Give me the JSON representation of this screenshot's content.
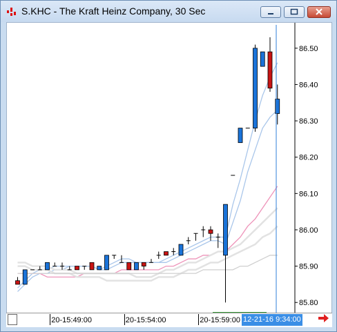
{
  "window": {
    "title": "S.KHC - The Kraft Heinz Company, 30 Sec",
    "buttons": [
      "minimize",
      "maximize",
      "close"
    ]
  },
  "chart_data": {
    "type": "candlestick",
    "title": "S.KHC - The Kraft Heinz Company, 30 Sec",
    "ylim": [
      85.77,
      86.57
    ],
    "y_ticks": [
      "86.50",
      "86.40",
      "86.30",
      "86.20",
      "86.10",
      "86.00",
      "85.90",
      "85.80"
    ],
    "y_tick_values": [
      86.5,
      86.4,
      86.3,
      86.2,
      86.1,
      86.0,
      85.9,
      85.8
    ],
    "x_tick_labels": [
      "20-15:49:00",
      "20-15:54:00",
      "20-15:59:00"
    ],
    "x_tick_index": [
      5,
      15,
      25
    ],
    "current_time_label": "12-21-16  9:34:00",
    "bar_count": 36,
    "candles": [
      {
        "i": 0,
        "o": 85.86,
        "h": 85.87,
        "l": 85.85,
        "c": 85.85,
        "color": "red"
      },
      {
        "i": 1,
        "o": 85.85,
        "h": 85.89,
        "l": 85.85,
        "c": 85.89,
        "color": "blue"
      },
      {
        "i": 2,
        "o": 85.89,
        "h": 85.89,
        "l": 85.89,
        "c": 85.89,
        "color": "doji"
      },
      {
        "i": 3,
        "o": 85.89,
        "h": 85.9,
        "l": 85.89,
        "c": 85.89,
        "color": "doji"
      },
      {
        "i": 4,
        "o": 85.89,
        "h": 85.91,
        "l": 85.89,
        "c": 85.91,
        "color": "blue"
      },
      {
        "i": 5,
        "o": 85.9,
        "h": 85.91,
        "l": 85.9,
        "c": 85.9,
        "color": "doji"
      },
      {
        "i": 6,
        "o": 85.9,
        "h": 85.91,
        "l": 85.89,
        "c": 85.9,
        "color": "doji"
      },
      {
        "i": 7,
        "o": 85.89,
        "h": 85.9,
        "l": 85.89,
        "c": 85.89,
        "color": "doji"
      },
      {
        "i": 8,
        "o": 85.9,
        "h": 85.9,
        "l": 85.89,
        "c": 85.89,
        "color": "red"
      },
      {
        "i": 9,
        "o": 85.89,
        "h": 85.9,
        "l": 85.89,
        "c": 85.9,
        "color": "doji"
      },
      {
        "i": 10,
        "o": 85.91,
        "h": 85.91,
        "l": 85.89,
        "c": 85.89,
        "color": "red"
      },
      {
        "i": 11,
        "o": 85.89,
        "h": 85.9,
        "l": 85.89,
        "c": 85.9,
        "color": "blue"
      },
      {
        "i": 12,
        "o": 85.89,
        "h": 85.93,
        "l": 85.89,
        "c": 85.93,
        "color": "blue"
      },
      {
        "i": 13,
        "o": 85.93,
        "h": 85.93,
        "l": 85.92,
        "c": 85.93,
        "color": "doji"
      },
      {
        "i": 14,
        "o": 85.93,
        "h": 85.93,
        "l": 85.91,
        "c": 85.91,
        "color": "doji"
      },
      {
        "i": 15,
        "o": 85.91,
        "h": 85.91,
        "l": 85.89,
        "c": 85.89,
        "color": "red"
      },
      {
        "i": 16,
        "o": 85.89,
        "h": 85.91,
        "l": 85.89,
        "c": 85.91,
        "color": "blue"
      },
      {
        "i": 17,
        "o": 85.91,
        "h": 85.91,
        "l": 85.89,
        "c": 85.9,
        "color": "red"
      },
      {
        "i": 18,
        "o": 85.92,
        "h": 85.92,
        "l": 85.91,
        "c": 85.91,
        "color": "doji"
      },
      {
        "i": 19,
        "o": 85.93,
        "h": 85.94,
        "l": 85.92,
        "c": 85.93,
        "color": "doji"
      },
      {
        "i": 20,
        "o": 85.94,
        "h": 85.94,
        "l": 85.93,
        "c": 85.93,
        "color": "red"
      },
      {
        "i": 21,
        "o": 85.94,
        "h": 85.95,
        "l": 85.93,
        "c": 85.94,
        "color": "doji"
      },
      {
        "i": 22,
        "o": 85.93,
        "h": 85.96,
        "l": 85.93,
        "c": 85.96,
        "color": "blue"
      },
      {
        "i": 23,
        "o": 85.97,
        "h": 85.98,
        "l": 85.96,
        "c": 85.97,
        "color": "doji"
      },
      {
        "i": 24,
        "o": 85.97,
        "h": 85.99,
        "l": 85.97,
        "c": 85.99,
        "color": "doji"
      },
      {
        "i": 25,
        "o": 85.99,
        "h": 86.01,
        "l": 85.98,
        "c": 86.0,
        "color": "doji"
      },
      {
        "i": 26,
        "o": 86.0,
        "h": 86.01,
        "l": 85.97,
        "c": 85.99,
        "color": "red"
      },
      {
        "i": 27,
        "o": 85.98,
        "h": 85.99,
        "l": 85.95,
        "c": 85.98,
        "color": "doji"
      },
      {
        "i": 28,
        "o": 85.93,
        "h": 86.07,
        "l": 85.8,
        "c": 86.07,
        "color": "blue"
      },
      {
        "i": 29,
        "o": 86.15,
        "h": 86.15,
        "l": 86.15,
        "c": 86.15,
        "color": "doji"
      },
      {
        "i": 30,
        "o": 86.24,
        "h": 86.28,
        "l": 86.24,
        "c": 86.28,
        "color": "blue"
      },
      {
        "i": 31,
        "o": 86.28,
        "h": 86.28,
        "l": 86.28,
        "c": 86.28,
        "color": "doji"
      },
      {
        "i": 32,
        "o": 86.28,
        "h": 86.51,
        "l": 86.27,
        "c": 86.5,
        "color": "blue"
      },
      {
        "i": 33,
        "o": 86.49,
        "h": 86.49,
        "l": 86.45,
        "c": 86.45,
        "color": "blue"
      },
      {
        "i": 34,
        "o": 86.49,
        "h": 86.53,
        "l": 86.38,
        "c": 86.39,
        "color": "red"
      },
      {
        "i": 35,
        "o": 86.32,
        "h": 86.4,
        "l": 86.29,
        "c": 86.36,
        "color": "blue"
      }
    ],
    "series": [
      {
        "color": "#a9c6ea",
        "values": [
          85.84,
          85.86,
          85.88,
          85.89,
          85.89,
          85.9,
          85.9,
          85.9,
          85.9,
          85.9,
          85.9,
          85.89,
          85.9,
          85.91,
          85.92,
          85.92,
          85.91,
          85.91,
          85.91,
          85.91,
          85.92,
          85.93,
          85.94,
          85.95,
          85.96,
          85.97,
          85.98,
          85.98,
          85.98,
          86.07,
          86.14,
          86.22,
          86.3,
          86.37,
          86.42,
          86.46
        ]
      },
      {
        "color": "#a9c6ea",
        "values": [
          85.83,
          85.85,
          85.87,
          85.88,
          85.88,
          85.89,
          85.89,
          85.9,
          85.9,
          85.9,
          85.9,
          85.89,
          85.89,
          85.9,
          85.91,
          85.91,
          85.91,
          85.91,
          85.91,
          85.91,
          85.91,
          85.92,
          85.93,
          85.94,
          85.95,
          85.96,
          85.97,
          85.97,
          85.96,
          86.02,
          86.08,
          86.16,
          86.22,
          86.28,
          86.31,
          86.33
        ]
      },
      {
        "color": "#ee93b9",
        "values": [
          85.88,
          85.88,
          85.88,
          85.88,
          85.87,
          85.87,
          85.87,
          85.87,
          85.87,
          85.88,
          85.88,
          85.88,
          85.88,
          85.88,
          85.89,
          85.89,
          85.89,
          85.89,
          85.89,
          85.89,
          85.9,
          85.9,
          85.91,
          85.92,
          85.92,
          85.93,
          85.93,
          85.94,
          85.94,
          85.96,
          85.98,
          86.01,
          86.03,
          86.06,
          86.09,
          86.12
        ]
      },
      {
        "color": "#e2e2e2",
        "values": [
          85.91,
          85.91,
          85.9,
          85.9,
          85.9,
          85.89,
          85.89,
          85.89,
          85.88,
          85.88,
          85.88,
          85.88,
          85.88,
          85.88,
          85.88,
          85.88,
          85.87,
          85.87,
          85.87,
          85.88,
          85.89,
          85.89,
          85.9,
          85.91,
          85.91,
          85.92,
          85.93,
          85.94,
          85.94,
          85.95,
          85.96,
          85.98,
          86.0,
          86.02,
          86.04,
          86.06
        ]
      },
      {
        "color": "#e2e2e2",
        "values": [
          85.9,
          85.9,
          85.89,
          85.89,
          85.89,
          85.88,
          85.88,
          85.88,
          85.87,
          85.87,
          85.87,
          85.87,
          85.86,
          85.86,
          85.86,
          85.86,
          85.86,
          85.86,
          85.86,
          85.87,
          85.87,
          85.87,
          85.88,
          85.89,
          85.89,
          85.9,
          85.91,
          85.91,
          85.92,
          85.93,
          85.94,
          85.95,
          85.96,
          85.98,
          85.99,
          86.01
        ]
      },
      {
        "color": "#cfcfcf",
        "values": [
          85.88,
          85.88,
          85.88,
          85.88,
          85.88,
          85.88,
          85.88,
          85.88,
          85.88,
          85.88,
          85.88,
          85.88,
          85.88,
          85.88,
          85.88,
          85.88,
          85.88,
          85.88,
          85.88,
          85.88,
          85.88,
          85.88,
          85.88,
          85.88,
          85.88,
          85.89,
          85.89,
          85.89,
          85.89,
          85.89,
          85.9,
          85.9,
          85.91,
          85.92,
          85.93,
          85.93
        ]
      }
    ]
  }
}
